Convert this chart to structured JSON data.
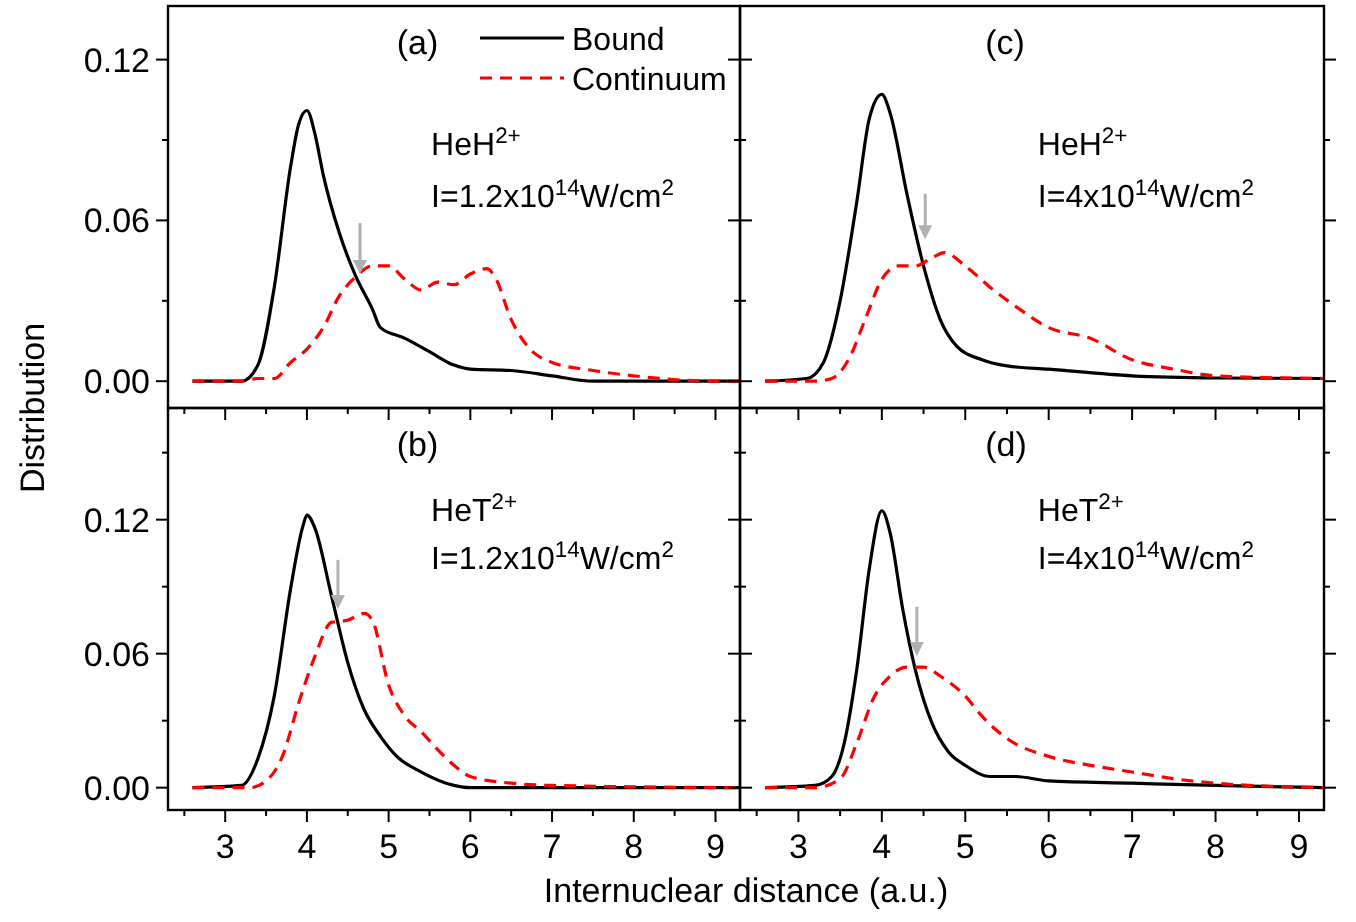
{
  "chart_data": [
    {
      "type": "line",
      "ylabel": "Distribution",
      "annotations": [
        "(a)",
        "HeH$^{2+}$",
        "I=1.2x10$^{14}$W/cm$^{2}$"
      ],
      "legend": "top right",
      "tick_labels": "y",
      "xlim": [
        2.3,
        9.3
      ],
      "xticks": [
        {
          "value": 2.5,
          "label": null
        },
        {
          "value": 3,
          "label": null
        },
        {
          "value": 3.5,
          "label": null
        },
        {
          "value": 4,
          "label": null
        },
        {
          "value": 4.5,
          "label": null
        },
        {
          "value": 5,
          "label": null
        },
        {
          "value": 5.5,
          "label": null
        },
        {
          "value": 6,
          "label": null
        },
        {
          "value": 6.5,
          "label": null
        },
        {
          "value": 7,
          "label": null
        },
        {
          "value": 7.5,
          "label": null
        },
        {
          "value": 8,
          "label": null
        },
        {
          "value": 8.5,
          "label": null
        },
        {
          "value": 9,
          "label": null
        }
      ],
      "ylim": [
        -0.01,
        0.14
      ],
      "yticks": [
        {
          "value": 0,
          "label": "0.00"
        },
        {
          "value": 0.03,
          "label": null
        },
        {
          "value": 0.06,
          "label": "0.06"
        },
        {
          "value": 0.09,
          "label": null
        },
        {
          "value": 0.12,
          "label": "0.12"
        }
      ],
      "series": [
        {
          "name": "Bound",
          "color": "#000000",
          "line_style": "solid",
          "x": [
            2.6,
            3.2,
            3.4,
            3.6,
            3.8,
            3.9,
            4.0,
            4.1,
            4.2,
            4.4,
            4.6,
            4.8,
            4.9,
            5.2,
            5.5,
            5.8,
            6.0,
            6.5,
            7.0,
            7.5,
            9.3
          ],
          "values": [
            0,
            0,
            0.006,
            0.035,
            0.08,
            0.096,
            0.101,
            0.092,
            0.077,
            0.055,
            0.039,
            0.027,
            0.02,
            0.016,
            0.011,
            0.006,
            0.0045,
            0.004,
            0.002,
            0,
            0
          ]
        },
        {
          "name": "Continuum",
          "color": "#ff0000",
          "line_style": "dashed",
          "x": [
            2.6,
            3.2,
            3.4,
            3.6,
            3.8,
            4.0,
            4.2,
            4.4,
            4.6,
            4.8,
            5.0,
            5.2,
            5.4,
            5.6,
            5.8,
            6.0,
            6.2,
            6.3,
            6.5,
            6.7,
            7.0,
            7.5,
            8.0,
            9.0,
            9.3
          ],
          "values": [
            0,
            0,
            0.001,
            0.001,
            0.007,
            0.012,
            0.02,
            0.032,
            0.039,
            0.043,
            0.043,
            0.038,
            0.034,
            0.037,
            0.036,
            0.04,
            0.042,
            0.039,
            0.023,
            0.013,
            0.007,
            0.004,
            0.002,
            0,
            0
          ]
        }
      ]
    },
    {
      "type": "line",
      "xlabel": "Internuclear distance (a.u.)",
      "annotations": [
        "(b)",
        "HeT$^{2+}$",
        "I=1.2x10$^{14}$W/cm$^{2}$"
      ],
      "xlim": [
        2.3,
        9.3
      ],
      "xticks": [
        {
          "value": 2.5,
          "label": null
        },
        {
          "value": 3,
          "label": "3"
        },
        {
          "value": 3.5,
          "label": null
        },
        {
          "value": 4,
          "label": "4"
        },
        {
          "value": 4.5,
          "label": null
        },
        {
          "value": 5,
          "label": "5"
        },
        {
          "value": 5.5,
          "label": null
        },
        {
          "value": 6,
          "label": "6"
        },
        {
          "value": 6.5,
          "label": null
        },
        {
          "value": 7,
          "label": "7"
        },
        {
          "value": 7.5,
          "label": null
        },
        {
          "value": 8,
          "label": "8"
        },
        {
          "value": 8.5,
          "label": null
        },
        {
          "value": 9,
          "label": "9"
        }
      ],
      "ylim": [
        -0.01,
        0.17
      ],
      "yticks": [
        {
          "value": 0,
          "label": "0.00"
        },
        {
          "value": 0.03,
          "label": null
        },
        {
          "value": 0.06,
          "label": "0.06"
        },
        {
          "value": 0.09,
          "label": null
        },
        {
          "value": 0.12,
          "label": "0.12"
        },
        {
          "value": 0.15,
          "label": null
        }
      ],
      "series": [
        {
          "color": "#000000",
          "line_style": "solid",
          "x": [
            2.6,
            3.2,
            3.4,
            3.6,
            3.8,
            3.95,
            4.0,
            4.1,
            4.3,
            4.5,
            4.7,
            4.9,
            5.1,
            5.4,
            5.8,
            6.0,
            9.3
          ],
          "values": [
            0,
            0.001,
            0.013,
            0.041,
            0.089,
            0.117,
            0.122,
            0.116,
            0.086,
            0.056,
            0.035,
            0.023,
            0.014,
            0.007,
            0.001,
            0,
            0
          ]
        },
        {
          "color": "#ff0000",
          "line_style": "dashed",
          "x": [
            2.6,
            3.3,
            3.5,
            3.7,
            3.9,
            4.1,
            4.3,
            4.5,
            4.7,
            4.8,
            5.0,
            5.2,
            5.4,
            5.6,
            5.8,
            6.0,
            6.5,
            7.0,
            9.3
          ],
          "values": [
            0,
            0,
            0.003,
            0.014,
            0.038,
            0.059,
            0.074,
            0.075,
            0.078,
            0.075,
            0.046,
            0.032,
            0.025,
            0.017,
            0.01,
            0.005,
            0.002,
            0.001,
            0
          ]
        }
      ]
    },
    {
      "type": "line",
      "annotations": [
        "(c)",
        "HeH$^{2+}$",
        "I=4x10$^{14}$W/cm$^{2}$"
      ],
      "tick_labels": false,
      "xlim": [
        2.3,
        9.3
      ],
      "xticks": [
        {
          "value": 2.5,
          "label": null
        },
        {
          "value": 3,
          "label": null
        },
        {
          "value": 3.5,
          "label": null
        },
        {
          "value": 4,
          "label": null
        },
        {
          "value": 4.5,
          "label": null
        },
        {
          "value": 5,
          "label": null
        },
        {
          "value": 5.5,
          "label": null
        },
        {
          "value": 6,
          "label": null
        },
        {
          "value": 6.5,
          "label": null
        },
        {
          "value": 7,
          "label": null
        },
        {
          "value": 7.5,
          "label": null
        },
        {
          "value": 8,
          "label": null
        },
        {
          "value": 8.5,
          "label": null
        },
        {
          "value": 9,
          "label": null
        }
      ],
      "ylim": [
        -0.01,
        0.14
      ],
      "yticks": [
        {
          "value": 0,
          "label": null
        },
        {
          "value": 0.03,
          "label": null
        },
        {
          "value": 0.06,
          "label": null
        },
        {
          "value": 0.09,
          "label": null
        },
        {
          "value": 0.12,
          "label": null
        }
      ],
      "series": [
        {
          "color": "#000000",
          "line_style": "solid",
          "x": [
            2.6,
            3.1,
            3.3,
            3.5,
            3.7,
            3.85,
            4.0,
            4.1,
            4.3,
            4.5,
            4.7,
            4.9,
            5.2,
            5.5,
            6.0,
            7.0,
            8.0,
            9.3
          ],
          "values": [
            0,
            0.001,
            0.007,
            0.03,
            0.067,
            0.098,
            0.107,
            0.1,
            0.07,
            0.043,
            0.023,
            0.013,
            0.008,
            0.0057,
            0.0045,
            0.002,
            0.0012,
            0.001
          ]
        },
        {
          "color": "#ff0000",
          "line_style": "dashed",
          "x": [
            2.6,
            3.2,
            3.4,
            3.6,
            3.8,
            4.0,
            4.2,
            4.4,
            4.6,
            4.75,
            5.0,
            5.3,
            5.6,
            6.0,
            6.5,
            7.0,
            7.5,
            8.0,
            9.3
          ],
          "values": [
            0,
            0,
            0.001,
            0.008,
            0.023,
            0.038,
            0.043,
            0.043,
            0.046,
            0.048,
            0.043,
            0.035,
            0.028,
            0.02,
            0.016,
            0.008,
            0.0045,
            0.002,
            0.001
          ]
        }
      ]
    },
    {
      "type": "line",
      "annotations": [
        "(d)",
        "HeT$^{2+}$",
        "I=4x10$^{14}$W/cm$^{2}$"
      ],
      "tick_labels": "x",
      "xlim": [
        2.3,
        9.3
      ],
      "xticks": [
        {
          "value": 2.5,
          "label": null
        },
        {
          "value": 3,
          "label": "3"
        },
        {
          "value": 3.5,
          "label": null
        },
        {
          "value": 4,
          "label": "4"
        },
        {
          "value": 4.5,
          "label": null
        },
        {
          "value": 5,
          "label": "5"
        },
        {
          "value": 5.5,
          "label": null
        },
        {
          "value": 6,
          "label": "6"
        },
        {
          "value": 6.5,
          "label": null
        },
        {
          "value": 7,
          "label": "7"
        },
        {
          "value": 7.5,
          "label": null
        },
        {
          "value": 8,
          "label": "8"
        },
        {
          "value": 8.5,
          "label": null
        },
        {
          "value": 9,
          "label": "9"
        }
      ],
      "ylim": [
        -0.01,
        0.17
      ],
      "yticks": [
        {
          "value": 0,
          "label": null
        },
        {
          "value": 0.03,
          "label": null
        },
        {
          "value": 0.06,
          "label": null
        },
        {
          "value": 0.09,
          "label": null
        },
        {
          "value": 0.12,
          "label": null
        },
        {
          "value": 0.15,
          "label": null
        }
      ],
      "series": [
        {
          "color": "#000000",
          "line_style": "solid",
          "x": [
            2.6,
            3.2,
            3.4,
            3.55,
            3.7,
            3.85,
            4.0,
            4.1,
            4.25,
            4.4,
            4.6,
            4.8,
            5.0,
            5.3,
            5.6,
            6.0,
            7.0,
            8.0,
            9.3
          ],
          "values": [
            0,
            0.001,
            0.005,
            0.02,
            0.053,
            0.098,
            0.124,
            0.114,
            0.08,
            0.053,
            0.029,
            0.016,
            0.01,
            0.005,
            0.005,
            0.003,
            0.002,
            0.001,
            0
          ]
        },
        {
          "color": "#ff0000",
          "line_style": "dashed",
          "x": [
            2.6,
            3.2,
            3.5,
            3.7,
            3.9,
            4.1,
            4.3,
            4.5,
            4.7,
            5.0,
            5.2,
            5.5,
            6.0,
            6.5,
            7.0,
            7.5,
            8.0,
            9.3
          ],
          "values": [
            0,
            0,
            0.004,
            0.02,
            0.04,
            0.05,
            0.054,
            0.054,
            0.05,
            0.041,
            0.032,
            0.022,
            0.014,
            0.01,
            0.007,
            0.004,
            0.002,
            0
          ]
        }
      ]
    }
  ]
}
